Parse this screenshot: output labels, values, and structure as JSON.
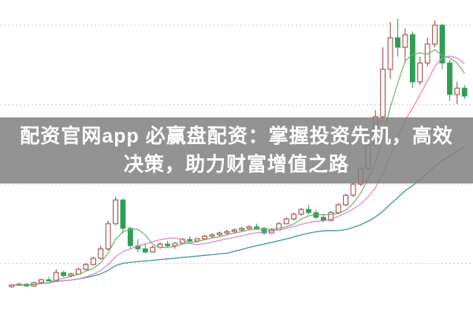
{
  "banner": {
    "line1": "配资官网app 必赢盘配资：掌握投资先机，高效",
    "line2": "决策，助力财富增值之路",
    "bg_color": "rgba(128,128,128,0.85)",
    "text_color": "#ffffff"
  },
  "chart_data": {
    "type": "candlestick",
    "title": "",
    "xlabel": "",
    "ylabel": "",
    "ylim": [
      0,
      100
    ],
    "grid": {
      "style": "dotted",
      "color": "#c9c9c9",
      "horizontal_lines": [
        16.3,
        41.5,
        66.8,
        92
      ]
    },
    "colors": {
      "up": "#9e3b3b",
      "down": "#2f9e55",
      "background": "#ffffff"
    },
    "ma_lines": [
      {
        "name": "MA5",
        "period": 5,
        "color": "#6fae6f"
      },
      {
        "name": "MA10",
        "period": 10,
        "color": "#e07cc0"
      },
      {
        "name": "MA30",
        "period": 30,
        "color": "#2e8b8b"
      }
    ],
    "candles": [
      [
        9.0,
        9.8,
        8.6,
        9.5
      ],
      [
        9.5,
        10.2,
        9.2,
        9.8
      ],
      [
        9.8,
        10.0,
        9.0,
        9.2
      ],
      [
        9.2,
        10.5,
        9.0,
        10.3
      ],
      [
        10.3,
        11.5,
        10.0,
        11.2
      ],
      [
        11.2,
        12.0,
        10.8,
        11.0
      ],
      [
        11.0,
        14.5,
        10.8,
        13.5
      ],
      [
        13.5,
        14.0,
        12.0,
        12.5
      ],
      [
        12.5,
        13.5,
        12.0,
        13.0
      ],
      [
        13.0,
        15.0,
        12.8,
        14.5
      ],
      [
        14.5,
        16.5,
        14.2,
        16.0
      ],
      [
        16.0,
        18.5,
        15.8,
        18.0
      ],
      [
        18.0,
        22.0,
        17.5,
        21.0
      ],
      [
        21.0,
        30.0,
        20.5,
        29.0
      ],
      [
        29.0,
        37.5,
        28.5,
        36.5
      ],
      [
        36.5,
        37.0,
        26.0,
        27.5
      ],
      [
        27.5,
        28.0,
        21.0,
        22.0
      ],
      [
        22.0,
        24.0,
        20.0,
        21.0
      ],
      [
        21.0,
        22.5,
        19.5,
        20.0
      ],
      [
        20.0,
        22.0,
        19.8,
        21.5
      ],
      [
        21.5,
        23.0,
        21.0,
        22.5
      ],
      [
        22.5,
        23.5,
        21.5,
        22.0
      ],
      [
        22.0,
        23.0,
        21.0,
        22.8
      ],
      [
        22.8,
        24.5,
        22.5,
        24.0
      ],
      [
        24.0,
        25.0,
        23.0,
        23.5
      ],
      [
        23.5,
        24.5,
        23.0,
        24.2
      ],
      [
        24.2,
        25.5,
        24.0,
        25.0
      ],
      [
        25.0,
        26.0,
        24.5,
        25.5
      ],
      [
        25.5,
        26.5,
        25.0,
        26.0
      ],
      [
        26.0,
        27.0,
        25.5,
        26.5
      ],
      [
        26.5,
        27.5,
        26.0,
        27.0
      ],
      [
        27.0,
        28.0,
        26.5,
        27.5
      ],
      [
        27.5,
        28.5,
        27.0,
        28.0
      ],
      [
        28.0,
        29.0,
        27.0,
        27.5
      ],
      [
        27.5,
        28.0,
        25.5,
        26.0
      ],
      [
        26.0,
        27.5,
        25.8,
        27.0
      ],
      [
        27.0,
        29.5,
        26.8,
        29.0
      ],
      [
        29.0,
        31.0,
        28.8,
        30.5
      ],
      [
        30.5,
        32.5,
        30.0,
        32.0
      ],
      [
        32.0,
        34.0,
        31.5,
        33.5
      ],
      [
        33.5,
        35.0,
        32.0,
        32.5
      ],
      [
        32.5,
        33.5,
        30.5,
        31.0
      ],
      [
        31.0,
        32.0,
        29.5,
        30.0
      ],
      [
        30.0,
        33.0,
        29.8,
        32.5
      ],
      [
        32.5,
        35.5,
        32.0,
        35.0
      ],
      [
        35.0,
        38.5,
        34.5,
        38.0
      ],
      [
        38.0,
        42.0,
        37.5,
        41.5
      ],
      [
        41.5,
        47.0,
        41.0,
        46.5
      ],
      [
        46.5,
        55.0,
        46.0,
        54.0
      ],
      [
        54.0,
        65.0,
        53.5,
        63.0
      ],
      [
        63.0,
        85.0,
        62.0,
        78.0
      ],
      [
        78.0,
        93.0,
        75.0,
        88.0
      ],
      [
        88.0,
        94.0,
        82.0,
        85.0
      ],
      [
        85.0,
        91.0,
        80.0,
        89.0
      ],
      [
        89.0,
        90.0,
        72.0,
        74.0
      ],
      [
        74.0,
        82.0,
        73.0,
        80.0
      ],
      [
        80.0,
        88.0,
        79.0,
        86.0
      ],
      [
        86.0,
        93.5,
        85.0,
        92.0
      ],
      [
        92.0,
        92.5,
        78.0,
        80.0
      ],
      [
        80.0,
        81.0,
        68.0,
        70.0
      ],
      [
        70.0,
        74.0,
        67.0,
        72.0
      ],
      [
        72.0,
        73.0,
        68.5,
        69.5
      ]
    ]
  }
}
